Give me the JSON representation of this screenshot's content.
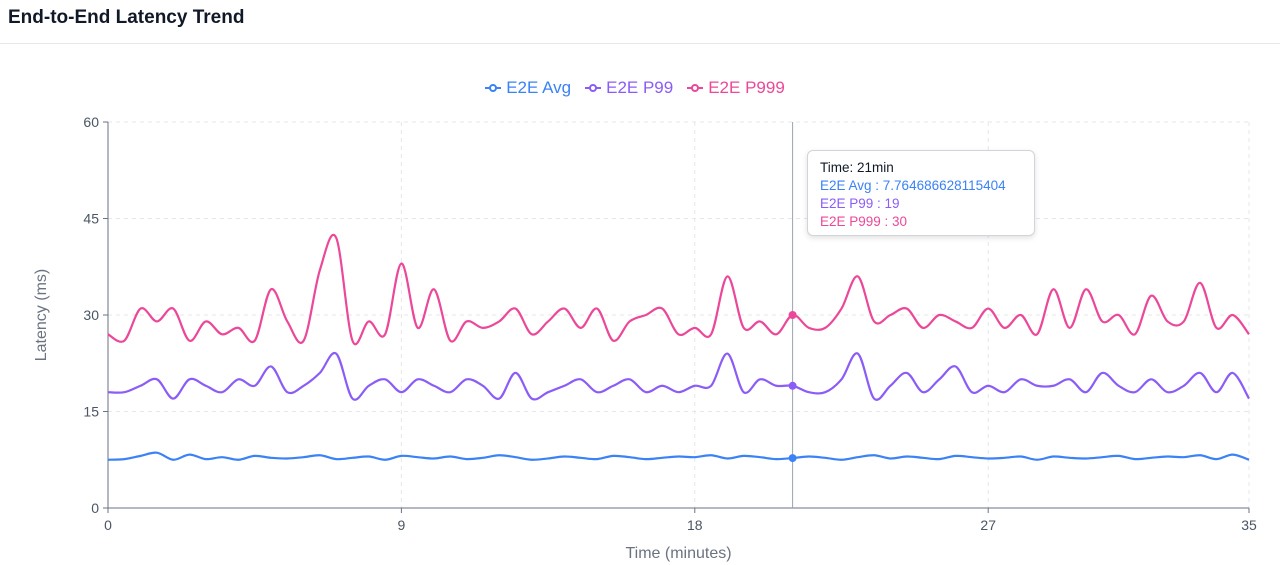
{
  "header": {
    "title": "End-to-End Latency Trend"
  },
  "legend": [
    {
      "label": "E2E Avg",
      "color": "#3b82f6"
    },
    {
      "label": "E2E P99",
      "color": "#8b5cf6"
    },
    {
      "label": "E2E P999",
      "color": "#ec4899"
    }
  ],
  "tooltip": {
    "time": "Time: 21min",
    "avg": "E2E Avg : 7.764686628115404",
    "p99": "E2E P99 : 19",
    "p999": "E2E P999 : 30"
  },
  "chart_data": {
    "type": "line",
    "title": "End-to-End Latency Trend",
    "xlabel": "Time (minutes)",
    "ylabel": "Latency (ms)",
    "xlim": [
      0,
      35
    ],
    "ylim": [
      0,
      60
    ],
    "xticks": [
      0,
      9,
      18,
      27,
      35
    ],
    "yticks": [
      0,
      15,
      30,
      45,
      60
    ],
    "grid": true,
    "legend_position": "top-center",
    "hover_x": 21,
    "x": [
      0,
      0.5,
      1,
      1.5,
      2,
      2.5,
      3,
      3.5,
      4,
      4.5,
      5,
      5.5,
      6,
      6.5,
      7,
      7.5,
      8,
      8.5,
      9,
      9.5,
      10,
      10.5,
      11,
      11.5,
      12,
      12.5,
      13,
      13.5,
      14,
      14.5,
      15,
      15.5,
      16,
      16.5,
      17,
      17.5,
      18,
      18.5,
      19,
      19.5,
      20,
      20.5,
      21,
      21.5,
      22,
      22.5,
      23,
      23.5,
      24,
      24.5,
      25,
      25.5,
      26,
      26.5,
      27,
      27.5,
      28,
      28.5,
      29,
      29.5,
      30,
      30.5,
      31,
      31.5,
      32,
      32.5,
      33,
      33.5,
      34,
      34.5,
      35
    ],
    "series": [
      {
        "name": "E2E Avg",
        "color": "#3b82f6",
        "values": [
          7.5,
          7.6,
          8.1,
          8.6,
          7.5,
          8.3,
          7.6,
          7.9,
          7.5,
          8.1,
          7.8,
          7.7,
          7.9,
          8.2,
          7.6,
          7.8,
          8.0,
          7.5,
          8.1,
          7.9,
          7.7,
          8.0,
          7.6,
          7.8,
          8.2,
          7.9,
          7.5,
          7.7,
          8.0,
          7.8,
          7.6,
          8.1,
          7.9,
          7.6,
          7.8,
          8.0,
          7.9,
          8.2,
          7.7,
          8.1,
          7.9,
          7.6,
          7.76,
          8.0,
          7.8,
          7.5,
          7.9,
          8.2,
          7.7,
          8.0,
          7.8,
          7.6,
          8.1,
          7.9,
          7.7,
          7.8,
          8.0,
          7.5,
          8.0,
          7.8,
          7.7,
          7.9,
          8.1,
          7.6,
          7.8,
          8.0,
          7.9,
          8.2,
          7.6,
          8.3,
          7.5
        ]
      },
      {
        "name": "E2E P99",
        "color": "#8b5cf6",
        "values": [
          18,
          18,
          19,
          20,
          17,
          20,
          19,
          18,
          20,
          19,
          22,
          18,
          19,
          21,
          24,
          17,
          19,
          20,
          18,
          20,
          19,
          18,
          20,
          19,
          17,
          21,
          17,
          18,
          19,
          20,
          18,
          19,
          20,
          18,
          19,
          18,
          19,
          19,
          24,
          18,
          20,
          19,
          19,
          18,
          18,
          20,
          24,
          17,
          19,
          21,
          18,
          20,
          22,
          18,
          19,
          18,
          20,
          19,
          19,
          20,
          18,
          21,
          19,
          18,
          20,
          18,
          19,
          21,
          18,
          21,
          17
        ]
      },
      {
        "name": "E2E P999",
        "color": "#ec4899",
        "values": [
          27,
          26,
          31,
          29,
          31,
          26,
          29,
          27,
          28,
          26,
          34,
          29,
          26,
          37,
          42,
          26,
          29,
          27,
          38,
          28,
          34,
          26,
          29,
          28,
          29,
          31,
          27,
          29,
          31,
          28,
          31,
          26,
          29,
          30,
          31,
          27,
          28,
          27,
          36,
          28,
          29,
          27,
          30,
          28,
          28,
          31,
          36,
          29,
          30,
          31,
          28,
          30,
          29,
          28,
          31,
          28,
          30,
          27,
          34,
          28,
          34,
          29,
          30,
          27,
          33,
          29,
          29,
          35,
          28,
          30,
          27
        ]
      }
    ]
  }
}
